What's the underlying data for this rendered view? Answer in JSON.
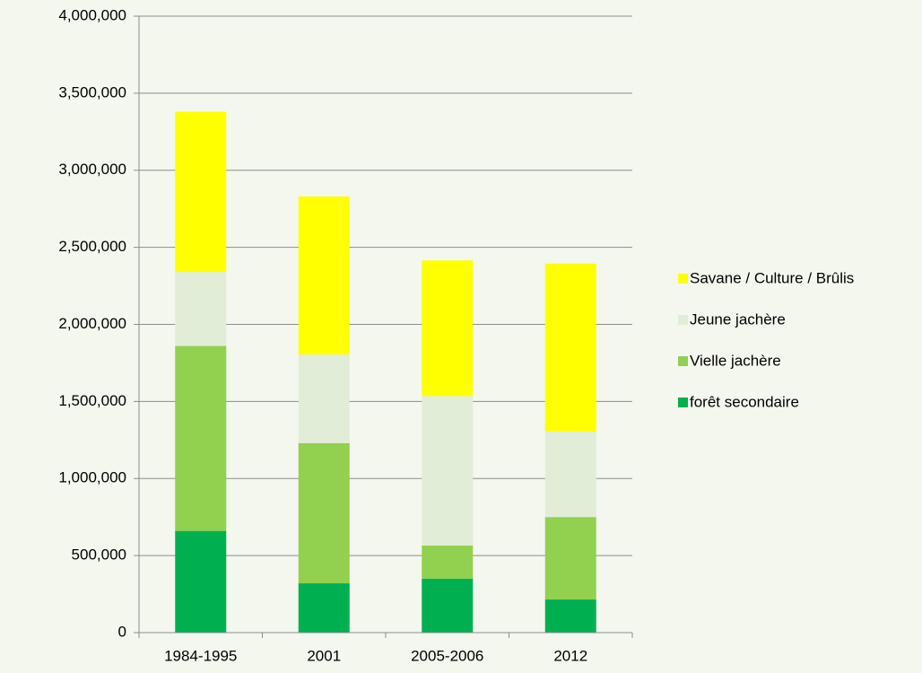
{
  "chart_data": {
    "type": "stacked_bar",
    "categories": [
      "1984-1995",
      "2001",
      "2005-2006",
      "2012"
    ],
    "series": [
      {
        "name": "forêt secondaire",
        "color": "#00b050",
        "values": [
          660000,
          320000,
          350000,
          215000
        ]
      },
      {
        "name": "Vielle jachère",
        "color": "#92d050",
        "values": [
          1200000,
          910000,
          215000,
          535000
        ]
      },
      {
        "name": "Jeune jachère",
        "color": "#e2edd7",
        "values": [
          480000,
          575000,
          970000,
          555000
        ]
      },
      {
        "name": "Savane / Culture / Brûlis",
        "color": "#ffff00",
        "values": [
          1040000,
          1025000,
          880000,
          1090000
        ]
      }
    ],
    "ylim": [
      0,
      4000000
    ],
    "yticks": [
      0,
      {
        "value": 500000,
        "label": "500,000"
      },
      {
        "value": 1000000,
        "label": "1,000,000"
      },
      {
        "value": 1500000,
        "label": "1,500,000"
      },
      {
        "value": 2000000,
        "label": "2,000,000"
      },
      {
        "value": 2500000,
        "label": "2,500,000"
      },
      {
        "value": 3000000,
        "label": "3,000,000"
      },
      {
        "value": 3500000,
        "label": "3,500,000"
      },
      {
        "value": 4000000,
        "label": "4,000,000"
      }
    ],
    "grid": true,
    "legend": "right"
  }
}
